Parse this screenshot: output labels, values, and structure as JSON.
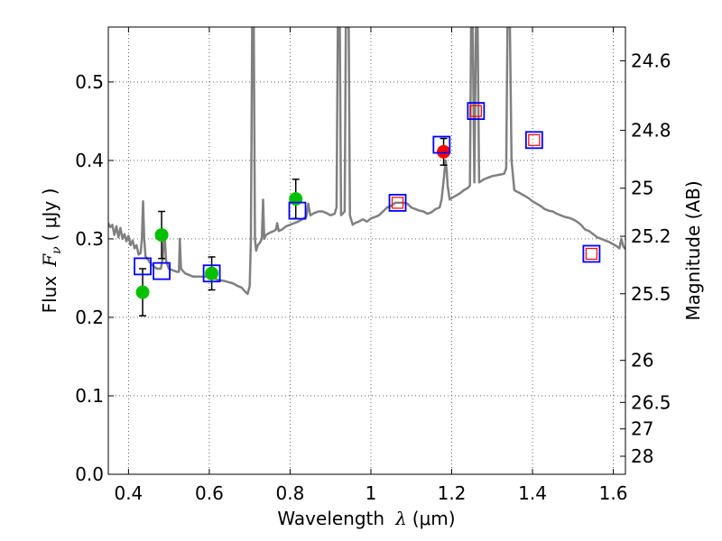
{
  "chart_data": {
    "type": "scatter",
    "xlabel_prefix": "Wavelength",
    "xlabel_symbol": "λ",
    "xlabel_unit": "(μm)",
    "ylabel_prefix": "Flux",
    "ylabel_symbol": "F",
    "ylabel_subscript": "ν",
    "ylabel_unit": "( μJy )",
    "y2label": "Magnitude (AB)",
    "xlim": [
      0.35,
      1.63
    ],
    "ylim": [
      0.0,
      0.57
    ],
    "grid": true,
    "x_ticks": [
      0.4,
      0.6,
      0.8,
      1.0,
      1.2,
      1.4,
      1.6
    ],
    "x_tick_labels": [
      "0.4",
      "0.6",
      "0.8",
      "1",
      "1.2",
      "1.4",
      "1.6"
    ],
    "y_ticks": [
      0.0,
      0.1,
      0.2,
      0.3,
      0.4,
      0.5
    ],
    "y_tick_labels": [
      "0.0",
      "0.1",
      "0.2",
      "0.3",
      "0.4",
      "0.5"
    ],
    "y2_ticks": [
      {
        "label": "24.6",
        "flux": 0.527
      },
      {
        "label": "24.8",
        "flux": 0.4383
      },
      {
        "label": "25",
        "flux": 0.3646
      },
      {
        "label": "25.2",
        "flux": 0.3033
      },
      {
        "label": "25.5",
        "flux": 0.2301
      },
      {
        "label": "26",
        "flux": 0.1452
      },
      {
        "label": "26.5",
        "flux": 0.0916
      },
      {
        "label": "27",
        "flux": 0.0578
      },
      {
        "label": "28",
        "flux": 0.023
      }
    ],
    "series": [
      {
        "name": "model spectrum",
        "type": "line",
        "color": "#808080",
        "points": [
          [
            0.35,
            0.32
          ],
          [
            0.355,
            0.315
          ],
          [
            0.36,
            0.318
          ],
          [
            0.365,
            0.305
          ],
          [
            0.37,
            0.316
          ],
          [
            0.375,
            0.302
          ],
          [
            0.38,
            0.314
          ],
          [
            0.385,
            0.3
          ],
          [
            0.39,
            0.306
          ],
          [
            0.395,
            0.297
          ],
          [
            0.4,
            0.304
          ],
          [
            0.405,
            0.292
          ],
          [
            0.41,
            0.298
          ],
          [
            0.415,
            0.288
          ],
          [
            0.42,
            0.292
          ],
          [
            0.425,
            0.28
          ],
          [
            0.43,
            0.282
          ],
          [
            0.433,
            0.3
          ],
          [
            0.436,
            0.348
          ],
          [
            0.439,
            0.3
          ],
          [
            0.442,
            0.278
          ],
          [
            0.45,
            0.272
          ],
          [
            0.46,
            0.266
          ],
          [
            0.47,
            0.262
          ],
          [
            0.48,
            0.262
          ],
          [
            0.485,
            0.276
          ],
          [
            0.489,
            0.31
          ],
          [
            0.493,
            0.272
          ],
          [
            0.5,
            0.262
          ],
          [
            0.51,
            0.26
          ],
          [
            0.52,
            0.258
          ],
          [
            0.525,
            0.258
          ],
          [
            0.527,
            0.3
          ],
          [
            0.53,
            0.262
          ],
          [
            0.54,
            0.256
          ],
          [
            0.56,
            0.252
          ],
          [
            0.58,
            0.252
          ],
          [
            0.6,
            0.252
          ],
          [
            0.62,
            0.248
          ],
          [
            0.64,
            0.246
          ],
          [
            0.66,
            0.243
          ],
          [
            0.67,
            0.24
          ],
          [
            0.68,
            0.238
          ],
          [
            0.69,
            0.232
          ],
          [
            0.695,
            0.23
          ],
          [
            0.7,
            0.24
          ],
          [
            0.703,
            0.3
          ],
          [
            0.706,
            0.57
          ],
          [
            0.71,
            0.57
          ],
          [
            0.713,
            0.3
          ],
          [
            0.716,
            0.285
          ],
          [
            0.72,
            0.292
          ],
          [
            0.725,
            0.295
          ],
          [
            0.73,
            0.3
          ],
          [
            0.733,
            0.35
          ],
          [
            0.736,
            0.3
          ],
          [
            0.74,
            0.305
          ],
          [
            0.75,
            0.308
          ],
          [
            0.76,
            0.31
          ],
          [
            0.765,
            0.312
          ],
          [
            0.768,
            0.32
          ],
          [
            0.772,
            0.31
          ],
          [
            0.78,
            0.312
          ],
          [
            0.79,
            0.316
          ],
          [
            0.8,
            0.318
          ],
          [
            0.81,
            0.32
          ],
          [
            0.82,
            0.322
          ],
          [
            0.83,
            0.325
          ],
          [
            0.84,
            0.328
          ],
          [
            0.845,
            0.345
          ],
          [
            0.85,
            0.33
          ],
          [
            0.86,
            0.333
          ],
          [
            0.87,
            0.335
          ],
          [
            0.88,
            0.335
          ],
          [
            0.89,
            0.333
          ],
          [
            0.9,
            0.33
          ],
          [
            0.91,
            0.332
          ],
          [
            0.915,
            0.34
          ],
          [
            0.918,
            0.57
          ],
          [
            0.923,
            0.57
          ],
          [
            0.926,
            0.33
          ],
          [
            0.935,
            0.335
          ],
          [
            0.938,
            0.57
          ],
          [
            0.945,
            0.57
          ],
          [
            0.948,
            0.33
          ],
          [
            0.955,
            0.318
          ],
          [
            0.96,
            0.32
          ],
          [
            0.97,
            0.322
          ],
          [
            0.98,
            0.325
          ],
          [
            0.99,
            0.322
          ],
          [
            1.0,
            0.326
          ],
          [
            1.01,
            0.328
          ],
          [
            1.02,
            0.33
          ],
          [
            1.03,
            0.335
          ],
          [
            1.04,
            0.34
          ],
          [
            1.05,
            0.342
          ],
          [
            1.06,
            0.346
          ],
          [
            1.07,
            0.346
          ],
          [
            1.08,
            0.346
          ],
          [
            1.09,
            0.345
          ],
          [
            1.1,
            0.34
          ],
          [
            1.11,
            0.338
          ],
          [
            1.12,
            0.336
          ],
          [
            1.13,
            0.335
          ],
          [
            1.14,
            0.332
          ],
          [
            1.15,
            0.334
          ],
          [
            1.16,
            0.338
          ],
          [
            1.17,
            0.34
          ],
          [
            1.175,
            0.35
          ],
          [
            1.18,
            0.375
          ],
          [
            1.185,
            0.4
          ],
          [
            1.188,
            0.385
          ],
          [
            1.19,
            0.368
          ],
          [
            1.195,
            0.35
          ],
          [
            1.2,
            0.352
          ],
          [
            1.21,
            0.355
          ],
          [
            1.22,
            0.358
          ],
          [
            1.23,
            0.362
          ],
          [
            1.24,
            0.365
          ],
          [
            1.245,
            0.368
          ],
          [
            1.248,
            0.57
          ],
          [
            1.252,
            0.57
          ],
          [
            1.256,
            0.372
          ],
          [
            1.26,
            0.57
          ],
          [
            1.264,
            0.57
          ],
          [
            1.268,
            0.372
          ],
          [
            1.28,
            0.376
          ],
          [
            1.3,
            0.38
          ],
          [
            1.32,
            0.382
          ],
          [
            1.33,
            0.383
          ],
          [
            1.335,
            0.39
          ],
          [
            1.338,
            0.57
          ],
          [
            1.344,
            0.57
          ],
          [
            1.348,
            0.4
          ],
          [
            1.355,
            0.362
          ],
          [
            1.37,
            0.358
          ],
          [
            1.39,
            0.352
          ],
          [
            1.4,
            0.348
          ],
          [
            1.41,
            0.345
          ],
          [
            1.42,
            0.342
          ],
          [
            1.43,
            0.338
          ],
          [
            1.44,
            0.336
          ],
          [
            1.45,
            0.335
          ],
          [
            1.46,
            0.332
          ],
          [
            1.47,
            0.33
          ],
          [
            1.48,
            0.328
          ],
          [
            1.49,
            0.327
          ],
          [
            1.5,
            0.325
          ],
          [
            1.51,
            0.322
          ],
          [
            1.52,
            0.318
          ],
          [
            1.53,
            0.312
          ],
          [
            1.54,
            0.31
          ],
          [
            1.55,
            0.306
          ],
          [
            1.56,
            0.302
          ],
          [
            1.57,
            0.3
          ],
          [
            1.58,
            0.298
          ],
          [
            1.59,
            0.296
          ],
          [
            1.6,
            0.293
          ],
          [
            1.61,
            0.29
          ],
          [
            1.615,
            0.288
          ],
          [
            1.62,
            0.3
          ],
          [
            1.625,
            0.29
          ],
          [
            1.63,
            0.287
          ]
        ]
      },
      {
        "name": "photometry (green)",
        "type": "scatter",
        "marker": "circle",
        "color": "#00c000",
        "points": [
          {
            "x": 0.435,
            "y": 0.232,
            "yerr": 0.03
          },
          {
            "x": 0.482,
            "y": 0.305,
            "yerr": 0.03
          },
          {
            "x": 0.606,
            "y": 0.256,
            "yerr": 0.021
          },
          {
            "x": 0.814,
            "y": 0.351,
            "yerr": 0.025
          }
        ]
      },
      {
        "name": "photometry (red)",
        "type": "scatter",
        "marker": "circle",
        "color": "#ff0000",
        "points": [
          {
            "x": 1.18,
            "y": 0.411,
            "yerr": 0.017
          }
        ]
      },
      {
        "name": "model photometry (blue)",
        "type": "scatter",
        "marker": "open-square-large",
        "color": "#0000ff",
        "points": [
          {
            "x": 0.435,
            "y": 0.265
          },
          {
            "x": 0.482,
            "y": 0.259
          },
          {
            "x": 0.606,
            "y": 0.256
          },
          {
            "x": 0.818,
            "y": 0.336
          },
          {
            "x": 1.066,
            "y": 0.346
          },
          {
            "x": 1.175,
            "y": 0.42
          },
          {
            "x": 1.26,
            "y": 0.463
          },
          {
            "x": 1.404,
            "y": 0.426
          },
          {
            "x": 1.546,
            "y": 0.281
          }
        ]
      },
      {
        "name": "model photometry (red)",
        "type": "scatter",
        "marker": "open-square-small",
        "color": "#ff0000",
        "points": [
          {
            "x": 1.066,
            "y": 0.346
          },
          {
            "x": 1.26,
            "y": 0.463
          },
          {
            "x": 1.404,
            "y": 0.426
          },
          {
            "x": 1.546,
            "y": 0.281
          }
        ]
      }
    ]
  }
}
